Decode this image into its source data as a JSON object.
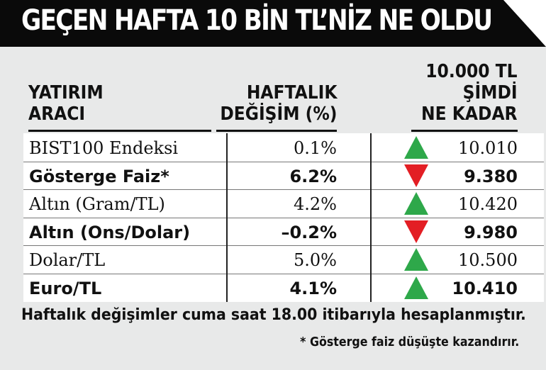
{
  "title": "GEÇEN HAFTA 10 BİN TL’NİZ NE OLDU",
  "headers": {
    "instrument": "YATIRIM\nARACI",
    "weekly_change": "HAFTALIK\nDEĞİŞİM (%)",
    "now_worth": "10.000 TL\nŞİMDİ\nNE KADAR"
  },
  "rows": [
    {
      "name": "BIST100 Endeksi",
      "change": "0.1%",
      "value": "10.010",
      "trend": "up",
      "bold": false
    },
    {
      "name": "Gösterge Faiz*",
      "change": "6.2%",
      "value": "9.380",
      "trend": "down",
      "bold": true
    },
    {
      "name": "Altın (Gram/TL)",
      "change": "4.2%",
      "value": "10.420",
      "trend": "up",
      "bold": false
    },
    {
      "name": "Altın (Ons/Dolar)",
      "change": "–0.2%",
      "value": "9.980",
      "trend": "down",
      "bold": true
    },
    {
      "name": "Dolar/TL",
      "change": "5.0%",
      "value": "10.500",
      "trend": "up",
      "bold": false
    },
    {
      "name": "Euro/TL",
      "change": "4.1%",
      "value": "10.410",
      "trend": "up",
      "bold": true
    }
  ],
  "colors": {
    "up": "#2ea84a",
    "down": "#e31e24",
    "banner": "#0a0a0a",
    "panel": "#e8e9e9"
  },
  "footnotes": {
    "calc_note": "Haftalık değişimler cuma saat 18.00 itibarıyla hesaplanmıştır.",
    "faiz_note": "* Gösterge faiz düşüşte kazandırır."
  }
}
